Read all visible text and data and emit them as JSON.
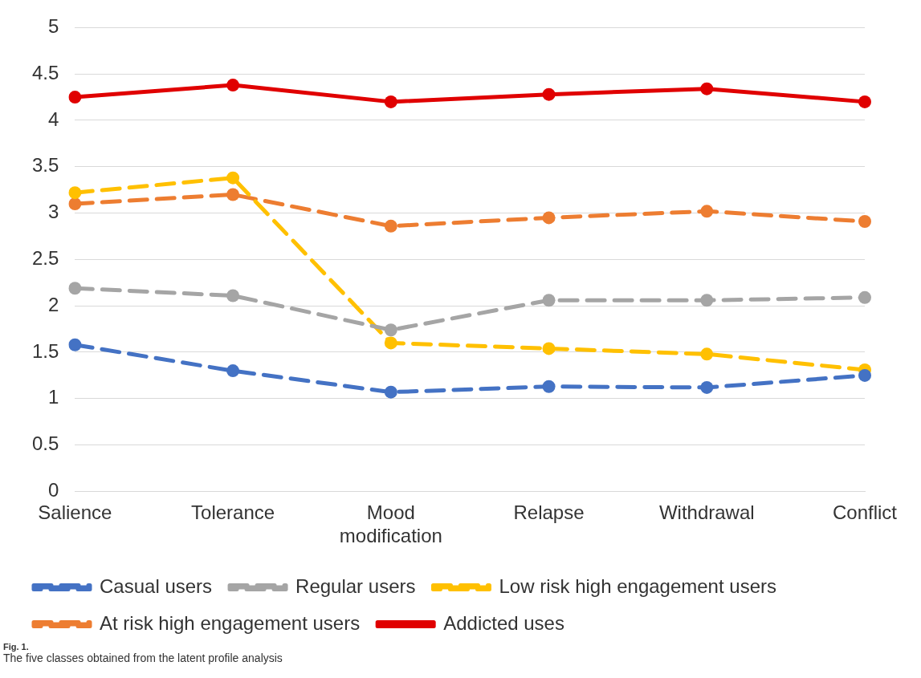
{
  "chart_data": {
    "type": "line",
    "categories": [
      "Salience",
      "Tolerance",
      "Mood modification",
      "Relapse",
      "Withdrawal",
      "Conflict"
    ],
    "ylim": [
      0,
      5
    ],
    "yticks": [
      0,
      0.5,
      1,
      1.5,
      2,
      2.5,
      3,
      3.5,
      4,
      4.5,
      5
    ],
    "grid": "y",
    "legend": "bottom",
    "marker": "circle",
    "series": [
      {
        "name": "Casual users",
        "color": "#4472c4",
        "line_style": "dashed",
        "values": [
          1.58,
          1.3,
          1.07,
          1.13,
          1.12,
          1.25
        ]
      },
      {
        "name": "Regular users",
        "color": "#a5a5a5",
        "line_style": "dashed",
        "values": [
          2.19,
          2.11,
          1.74,
          2.06,
          2.06,
          2.09
        ]
      },
      {
        "name": "Low risk high engagement users",
        "color": "#ffc000",
        "line_style": "dashed",
        "values": [
          3.22,
          3.38,
          1.6,
          1.54,
          1.48,
          1.31
        ]
      },
      {
        "name": "At risk high engagement users",
        "color": "#ed7d31",
        "line_style": "dashed",
        "values": [
          3.1,
          3.2,
          2.86,
          2.95,
          3.02,
          2.91
        ]
      },
      {
        "name": "Addicted uses",
        "color": "#e00000",
        "line_style": "solid",
        "values": [
          4.25,
          4.38,
          4.2,
          4.28,
          4.34,
          4.2
        ]
      }
    ],
    "annotations": [
      "Fig. 1.",
      "The five classes obtained from the latent profile analysis"
    ]
  }
}
